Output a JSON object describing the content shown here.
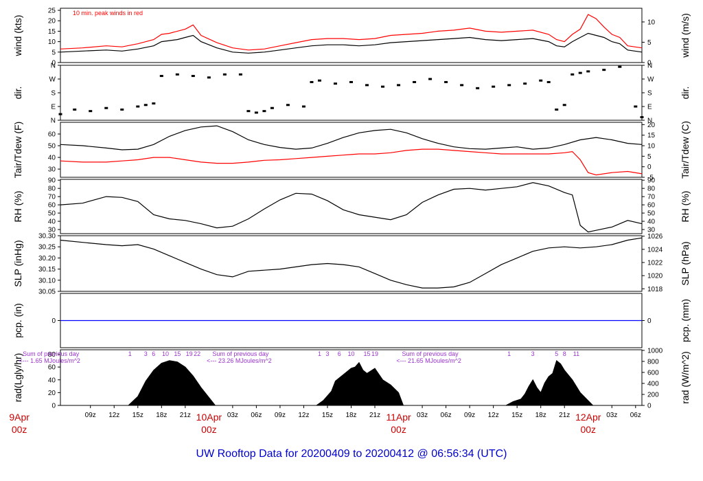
{
  "chart_data": {
    "title": "UW Rooftop Data for 20200409  to  20200412 @ 06:56:34  (UTC)",
    "x_time_ticks": [
      "09z",
      "12z",
      "15z",
      "18z",
      "21z",
      "03z",
      "06z",
      "09z",
      "12z",
      "15z",
      "18z",
      "21z",
      "03z",
      "06z",
      "09z",
      "12z",
      "15z",
      "18z",
      "21z",
      "03z",
      "06z"
    ],
    "day_labels": [
      {
        "date": "9Apr",
        "hour": "00z",
        "t": 0
      },
      {
        "date": "10Apr",
        "hour": "00z",
        "t": 24
      },
      {
        "date": "11Apr",
        "hour": "00z",
        "t": 48
      },
      {
        "date": "12Apr",
        "hour": "00z",
        "t": 72
      }
    ],
    "x_range_hours": [
      5.2,
      78.8
    ],
    "accent_colors": {
      "series2": "#ff0000",
      "title": "#0000cc",
      "annotation": "#9933cc",
      "day_label": "#cc0000",
      "precip_line": "#0000ff"
    },
    "panels": [
      {
        "id": "wind",
        "type": "line",
        "ylabel_left": "wind (kts)",
        "ylabel_right": "wind (m/s)",
        "ylim": [
          0,
          26
        ],
        "left_ticks": [
          0,
          5,
          10,
          15,
          20,
          25
        ],
        "right_ticks": [
          0,
          5,
          10
        ],
        "annotation": "10 min. peak winds in red",
        "series": [
          {
            "name": "wind speed",
            "color": "#000000",
            "x": [
              5.2,
              8,
              11,
              13,
              15,
              17,
              18,
              19,
              20,
              21,
              22,
              23,
              25,
              27,
              29,
              31,
              33,
              35,
              37,
              39,
              41,
              43,
              45,
              47,
              49,
              51,
              53,
              55,
              57,
              59,
              61,
              63,
              65,
              67,
              68,
              69,
              70,
              71,
              72,
              73,
              74,
              75,
              76,
              77,
              78.8
            ],
            "y": [
              5,
              5.5,
              6,
              5.5,
              6.5,
              8,
              10,
              10.5,
              11,
              12,
              13,
              10,
              7,
              5,
              4.5,
              5,
              6,
              7,
              8,
              8.5,
              8.5,
              8,
              8.5,
              9.5,
              10,
              10.5,
              11,
              11.5,
              12,
              11,
              10.5,
              11,
              11.5,
              10,
              8,
              7.5,
              10,
              12,
              14,
              13,
              12,
              10,
              9,
              6,
              5
            ]
          },
          {
            "name": "10 min peak wind",
            "color": "#ff0000",
            "x": [
              5.2,
              8,
              11,
              13,
              15,
              17,
              18,
              19,
              20,
              21,
              22,
              23,
              25,
              27,
              29,
              31,
              33,
              35,
              37,
              39,
              41,
              43,
              45,
              47,
              49,
              51,
              53,
              55,
              57,
              59,
              61,
              63,
              65,
              67,
              68,
              69,
              70,
              71,
              72,
              73,
              74,
              75,
              76,
              77,
              78.8
            ],
            "y": [
              6.5,
              7,
              8,
              7.5,
              9,
              11,
              13.5,
              14,
              15,
              16,
              18,
              13,
              9.5,
              7,
              6,
              6.5,
              8,
              9.5,
              11,
              11.5,
              11.5,
              11,
              11.5,
              13,
              13.5,
              14,
              15,
              15.5,
              16.5,
              15,
              14.5,
              15,
              15.5,
              13.5,
              11,
              10,
              13.5,
              16,
              23,
              21,
              17,
              13.5,
              12,
              8,
              7
            ]
          }
        ]
      },
      {
        "id": "dir",
        "type": "scatter",
        "ylabel_left": "dir.",
        "ylabel_right": "dir.",
        "ylim": [
          0,
          360
        ],
        "left_ticks": [
          "N",
          "E",
          "S",
          "W",
          "N"
        ],
        "right_ticks": [
          "N",
          "E",
          "S",
          "W",
          "N"
        ],
        "series": [
          {
            "name": "wind direction (deg)",
            "color": "#000000",
            "x": [
              5.2,
              7,
              9,
              11,
              13,
              15,
              16,
              17,
              18,
              20,
              22,
              24,
              26,
              28,
              29,
              30,
              31,
              32,
              34,
              36,
              37,
              38,
              40,
              42,
              44,
              46,
              48,
              50,
              52,
              54,
              56,
              58,
              60,
              62,
              64,
              66,
              67,
              68,
              69,
              70,
              71,
              72,
              74,
              76,
              78,
              78.8
            ],
            "y": [
              40,
              70,
              60,
              80,
              70,
              90,
              100,
              110,
              290,
              300,
              290,
              280,
              300,
              300,
              60,
              50,
              60,
              80,
              100,
              90,
              250,
              260,
              240,
              250,
              230,
              220,
              230,
              250,
              270,
              250,
              230,
              210,
              220,
              230,
              240,
              260,
              250,
              70,
              100,
              300,
              310,
              320,
              330,
              350,
              90,
              20
            ]
          }
        ]
      },
      {
        "id": "temp",
        "type": "line",
        "ylabel_left": "Tair/Tdew (F)",
        "ylabel_right": "Tair/Tdew (C)",
        "ylim": [
          23,
          70
        ],
        "left_ticks": [
          30,
          40,
          50,
          60
        ],
        "right_ticks": [
          -5,
          0,
          5,
          10,
          15,
          20
        ],
        "series": [
          {
            "name": "Tair",
            "color": "#000000",
            "x": [
              5.2,
              8,
              11,
              13,
              15,
              17,
              19,
              21,
              23,
              25,
              27,
              29,
              31,
              33,
              35,
              37,
              39,
              41,
              43,
              45,
              47,
              49,
              51,
              53,
              55,
              57,
              59,
              61,
              63,
              65,
              67,
              69,
              71,
              73,
              75,
              77,
              78.8
            ],
            "y": [
              51,
              50,
              48,
              46.5,
              47,
              51,
              58,
              63,
              66,
              67,
              62,
              55,
              51,
              48.5,
              47,
              48,
              52,
              57,
              61,
              63,
              64,
              61,
              56,
              52,
              49,
              47.5,
              47,
              48,
              49,
              47,
              48,
              51,
              55,
              57,
              55,
              52,
              51
            ]
          },
          {
            "name": "Tdew",
            "color": "#ff0000",
            "x": [
              5.2,
              8,
              11,
              13,
              15,
              17,
              19,
              21,
              23,
              25,
              27,
              29,
              31,
              33,
              35,
              37,
              39,
              41,
              43,
              45,
              47,
              49,
              51,
              53,
              55,
              57,
              59,
              61,
              63,
              65,
              67,
              69,
              70,
              71,
              72,
              73,
              75,
              77,
              78.8
            ],
            "y": [
              37,
              36,
              36,
              37,
              38,
              40,
              40,
              38,
              36,
              35,
              35,
              36,
              37.5,
              38,
              39,
              40,
              41,
              42,
              43,
              43,
              44,
              46,
              47,
              47,
              46,
              45,
              44,
              43,
              43,
              43,
              43,
              44,
              45,
              38,
              27,
              25,
              27,
              28,
              26
            ]
          }
        ]
      },
      {
        "id": "rh",
        "type": "line",
        "ylabel_left": "RH (%)",
        "ylabel_right": "RH (%)",
        "ylim": [
          25,
          91
        ],
        "left_ticks": [
          30,
          40,
          50,
          60,
          70,
          80,
          90
        ],
        "right_ticks": [
          30,
          40,
          50,
          60,
          70,
          80,
          90
        ],
        "series": [
          {
            "name": "RH",
            "color": "#000000",
            "x": [
              5.2,
              8,
              11,
              13,
              15,
              17,
              19,
              21,
              23,
              25,
              27,
              29,
              31,
              33,
              35,
              37,
              39,
              41,
              43,
              45,
              47,
              49,
              51,
              53,
              55,
              57,
              59,
              61,
              63,
              65,
              67,
              69,
              70,
              71,
              72,
              73,
              75,
              77,
              78.8
            ],
            "y": [
              60,
              62,
              70,
              69,
              64,
              48,
              43,
              41,
              37,
              32,
              34,
              43,
              55,
              66,
              74,
              73,
              65,
              54,
              48,
              45,
              42,
              48,
              63,
              72,
              79,
              80,
              78,
              80,
              82,
              87,
              83,
              75,
              72,
              35,
              27,
              29,
              33,
              41,
              37
            ]
          }
        ]
      },
      {
        "id": "slp",
        "type": "line",
        "ylabel_left": "SLP (inHg)",
        "ylabel_right": "SLP (hPa)",
        "ylim": [
          30.05,
          30.3
        ],
        "left_ticks": [
          30.05,
          30.1,
          30.15,
          30.2,
          30.25,
          30.3
        ],
        "right_ticks": [
          1018,
          1020,
          1022,
          1024,
          1026
        ],
        "series": [
          {
            "name": "SLP",
            "color": "#000000",
            "x": [
              5.2,
              8,
              11,
              13,
              15,
              17,
              19,
              21,
              23,
              25,
              27,
              29,
              31,
              33,
              35,
              37,
              39,
              41,
              43,
              45,
              47,
              49,
              51,
              53,
              55,
              57,
              59,
              61,
              63,
              65,
              67,
              69,
              71,
              73,
              75,
              77,
              78.8
            ],
            "y": [
              30.28,
              30.27,
              30.26,
              30.255,
              30.26,
              30.24,
              30.21,
              30.18,
              30.15,
              30.125,
              30.115,
              30.14,
              30.145,
              30.15,
              30.16,
              30.17,
              30.175,
              30.17,
              30.16,
              30.13,
              30.1,
              30.08,
              30.065,
              30.065,
              30.07,
              30.09,
              30.13,
              30.17,
              30.2,
              30.23,
              30.245,
              30.25,
              30.245,
              30.25,
              30.26,
              30.28,
              30.29
            ]
          }
        ]
      },
      {
        "id": "pcp",
        "type": "line",
        "ylabel_left": "pcp. (in)",
        "ylabel_right": "pcp. (mm)",
        "ylim": [
          -1,
          1
        ],
        "left_ticks": [
          0
        ],
        "right_ticks": [
          0
        ],
        "series": [
          {
            "name": "precip",
            "color": "#0000ff",
            "x": [
              5.2,
              78.8
            ],
            "y": [
              0,
              0
            ]
          }
        ]
      },
      {
        "id": "rad",
        "type": "area",
        "ylabel_left": "rad(Lgly/hr)",
        "ylabel_right": "rad (W/m^2)",
        "ylim": [
          0,
          87
        ],
        "left_ticks": [
          0,
          20,
          40,
          60,
          80
        ],
        "right_ticks": [
          0,
          200,
          400,
          600,
          800,
          1000
        ],
        "annotations": [
          {
            "text": "Sum of previous day",
            "t": 4
          },
          {
            "text": "<--- 1.65 MJoules/m^2",
            "t": 4
          },
          {
            "text": "Sum of previous day",
            "t": 28
          },
          {
            "text": "<--- 23.26 MJoules/m^2",
            "t": 28
          },
          {
            "text": "Sum of previous day",
            "t": 52
          },
          {
            "text": "<--- 21.65 MJoules/m^2",
            "t": 52
          }
        ],
        "top_hour_labels": [
          {
            "t": 14,
            "text": "1"
          },
          {
            "t": 16,
            "text": "3"
          },
          {
            "t": 17,
            "text": "6"
          },
          {
            "t": 18.5,
            "text": "10"
          },
          {
            "t": 20,
            "text": "15"
          },
          {
            "t": 21.5,
            "text": "19"
          },
          {
            "t": 22.5,
            "text": "22"
          },
          {
            "t": 38,
            "text": "1"
          },
          {
            "t": 39,
            "text": "3"
          },
          {
            "t": 40.5,
            "text": "6"
          },
          {
            "t": 42,
            "text": "10"
          },
          {
            "t": 44,
            "text": "15"
          },
          {
            "t": 45,
            "text": "19"
          },
          {
            "t": 62,
            "text": "1"
          },
          {
            "t": 65,
            "text": "3"
          },
          {
            "t": 68,
            "text": "5"
          },
          {
            "t": 69,
            "text": "8"
          },
          {
            "t": 70.5,
            "text": "11"
          }
        ],
        "series": [
          {
            "name": "solar radiation",
            "color": "#000000",
            "x": [
              5.2,
              13.8,
              15,
              16,
              17,
              18,
              19,
              20,
              21,
              22,
              23,
              24.8,
              28,
              37.6,
              38.5,
              39.5,
              40,
              41,
              42,
              42.5,
              43,
              43.5,
              44,
              45,
              46,
              47,
              48,
              48.6,
              52,
              61.6,
              62.5,
              63.5,
              64,
              64.5,
              65,
              65.5,
              66,
              66.5,
              67,
              67.5,
              68,
              68.5,
              69,
              70,
              71,
              72.6,
              78.8
            ],
            "y": [
              0,
              0,
              14,
              38,
              55,
              66,
              70,
              68,
              60,
              46,
              28,
              0,
              0,
              0,
              8,
              22,
              38,
              48,
              58,
              60,
              67,
              55,
              50,
              58,
              40,
              32,
              20,
              0,
              0,
              0,
              6,
              10,
              18,
              30,
              40,
              28,
              20,
              35,
              45,
              50,
              70,
              65,
              55,
              40,
              20,
              0,
              0
            ]
          }
        ]
      }
    ]
  }
}
